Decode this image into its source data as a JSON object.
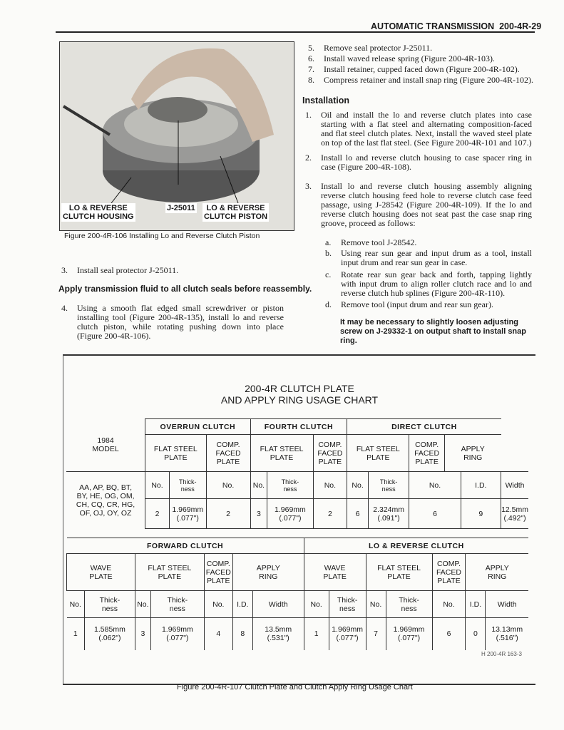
{
  "header": {
    "title": "AUTOMATIC TRANSMISSION",
    "page": "200-4R-29"
  },
  "figure106": {
    "labels": {
      "housing": "LO & REVERSE\nCLUTCH HOUSING",
      "tool": "J-25011",
      "piston": "LO & REVERSE\nCLUTCH PISTON"
    },
    "caption": "Figure 200-4R-106 Installing Lo and Reverse Clutch Piston"
  },
  "left_text": {
    "step3": {
      "n": "3.",
      "t": "Install seal protector J-25011."
    },
    "note": "Apply transmission fluid to all clutch seals before reassembly.",
    "step4": {
      "n": "4.",
      "t": "Using a smooth flat edged small screwdriver or piston installing tool (Figure 200-4R-135), install lo and reverse clutch piston, while rotating pushing down into place (Figure 200-4R-106)."
    }
  },
  "right_text": {
    "steps": [
      {
        "n": "5.",
        "t": "Remove seal protector J-25011."
      },
      {
        "n": "6.",
        "t": "Install waved release spring (Figure 200-4R-103)."
      },
      {
        "n": "7.",
        "t": "Install retainer, cupped faced down (Figure 200-4R-102)."
      },
      {
        "n": "8.",
        "t": "Compress retainer and install snap ring (Figure 200-4R-102)."
      }
    ],
    "installation_heading": "Installation",
    "install": [
      {
        "n": "1.",
        "t": "Oil and install the lo and reverse clutch plates into case starting with a flat steel and alternating composition-faced and flat steel clutch plates. Next, install the waved steel plate on top of the last flat steel. (See Figure 200-4R-101 and 107.)"
      },
      {
        "n": "2.",
        "t": "Install lo and reverse clutch housing to case spacer ring in case (Figure 200-4R-108)."
      },
      {
        "n": "3.",
        "t": "Install lo and reverse clutch housing assembly aligning reverse clutch housing feed hole to reverse clutch case feed passage, using J-28542 (Figure 200-4R-109). If the lo and reverse clutch housing does not seat past the case snap ring groove, proceed as follows:"
      }
    ],
    "substeps": [
      {
        "n": "a.",
        "t": "Remove tool J-28542."
      },
      {
        "n": "b.",
        "t": "Using rear sun gear and input drum as a tool, install input drum and rear sun gear in case."
      },
      {
        "n": "c.",
        "t": "Rotate rear sun gear back and forth, tapping lightly with input drum to align roller clutch race and lo and reverse clutch hub splines (Figure 200-4R-110)."
      },
      {
        "n": "d.",
        "t": "Remove tool (input drum and rear sun gear)."
      }
    ],
    "note": "It may be necessary to slightly loosen adjusting screw on J-29332-1 on output shaft to install snap ring."
  },
  "chart": {
    "title1": "200-4R CLUTCH PLATE",
    "title2": "AND APPLY RING USAGE CHART",
    "t1": {
      "model_head": "1984\nMODEL",
      "models": "AA, AP, BQ, BT,\nBY, HE, OG, OM,\nCH, CQ, CR, HG,\nOF, OJ, OY, OZ",
      "groups": [
        "OVERRUN CLUTCH",
        "FOURTH CLUTCH",
        "DIRECT CLUTCH"
      ],
      "subs": [
        "FLAT STEEL\nPLATE",
        "COMP.\nFACED\nPLATE",
        "FLAT STEEL\nPLATE",
        "COMP.\nFACED\nPLATE",
        "FLAT STEEL\nPLATE",
        "COMP.\nFACED\nPLATE",
        "APPLY\nRING"
      ],
      "cols": [
        "No.",
        "Thick-\nness",
        "No.",
        "No.",
        "Thick-\nness",
        "No.",
        "No.",
        "Thick-\nness",
        "No.",
        "I.D.",
        "Width"
      ],
      "values": [
        "2",
        "1.969mm\n(.077\")",
        "2",
        "3",
        "1.969mm\n(.077\")",
        "2",
        "6",
        "2.324mm\n(.091\")",
        "6",
        "9",
        "12.5mm\n(.492\")"
      ]
    },
    "t2": {
      "groups": [
        "FORWARD CLUTCH",
        "LO & REVERSE CLUTCH"
      ],
      "subs": [
        "WAVE\nPLATE",
        "FLAT STEEL\nPLATE",
        "COMP.\nFACED\nPLATE",
        "APPLY\nRING",
        "WAVE\nPLATE",
        "FLAT STEEL\nPLATE",
        "COMP.\nFACED\nPLATE",
        "APPLY\nRING"
      ],
      "cols": [
        "No.",
        "Thick-\nness",
        "No.",
        "Thick-\nness",
        "No.",
        "I.D.",
        "Width",
        "No.",
        "Thick-\nness",
        "No.",
        "Thick-\nness",
        "No.",
        "I.D.",
        "Width"
      ],
      "values": [
        "1",
        "1.585mm\n(.062\")",
        "3",
        "1.969mm\n(.077\")",
        "4",
        "8",
        "13.5mm\n(.531\")",
        "1",
        "1.969mm\n(.077\")",
        "7",
        "1.969mm\n(.077\")",
        "6",
        "0",
        "13.13mm\n(.516\")"
      ]
    },
    "code": "H 200-4R 163-3",
    "caption": "Figure 200-4R-107 Clutch Plate and Clutch Apply Ring Usage Chart"
  }
}
